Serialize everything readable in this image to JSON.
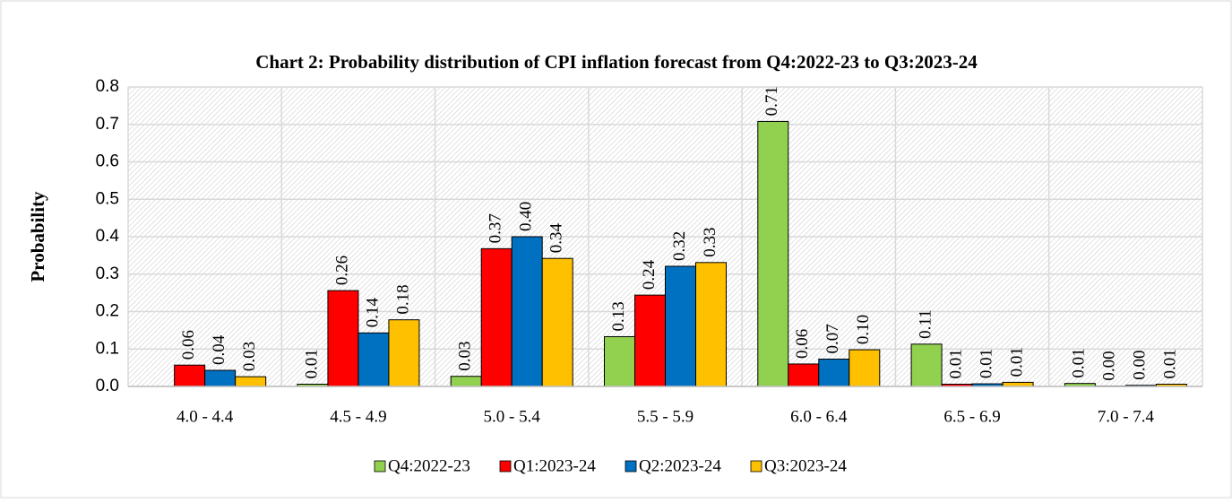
{
  "chart_data": {
    "type": "bar",
    "title": "Chart 2: Probability distribution of  CPI inflation forecast from Q4:2022-23 to Q3:2023-24",
    "y_label": "Probability",
    "categories": [
      "4.0 - 4.4",
      "4.5 - 4.9",
      "5.0 - 5.4",
      "5.5 - 5.9",
      "6.0 - 6.4",
      "6.5 - 6.9",
      "7.0 - 7.4"
    ],
    "series": [
      {
        "name": "Q4:2022-23",
        "color": "#92d050",
        "values": [
          null,
          0.006,
          0.027,
          0.133,
          0.708,
          0.113,
          0.008
        ],
        "value_labels": [
          null,
          "0.01",
          "0.03",
          "0.13",
          "0.71",
          "0.11",
          "0.01"
        ]
      },
      {
        "name": "Q1:2023-24",
        "color": "#ff0000",
        "values": [
          0.057,
          0.256,
          0.368,
          0.244,
          0.06,
          0.006,
          0.001
        ],
        "value_labels": [
          "0.06",
          "0.26",
          "0.37",
          "0.24",
          "0.06",
          "0.01",
          "0.00"
        ]
      },
      {
        "name": "Q2:2023-24",
        "color": "#0070c0",
        "values": [
          0.043,
          0.143,
          0.4,
          0.321,
          0.073,
          0.007,
          0.003
        ],
        "value_labels": [
          "0.04",
          "0.14",
          "0.40",
          "0.32",
          "0.07",
          "0.01",
          "0.00"
        ]
      },
      {
        "name": "Q3:2023-24",
        "color": "#ffc000",
        "values": [
          0.026,
          0.178,
          0.342,
          0.331,
          0.098,
          0.011,
          0.006
        ],
        "value_labels": [
          "0.03",
          "0.18",
          "0.34",
          "0.33",
          "0.10",
          "0.01",
          "0.01"
        ]
      }
    ],
    "ylim": [
      0,
      0.8
    ],
    "yticks": [
      {
        "value": 0,
        "label": "0.0"
      },
      0.1,
      0.2,
      0.3,
      0.4,
      0.5,
      0.6,
      0.7,
      0.8
    ],
    "grid": true,
    "legend": "bottom"
  }
}
